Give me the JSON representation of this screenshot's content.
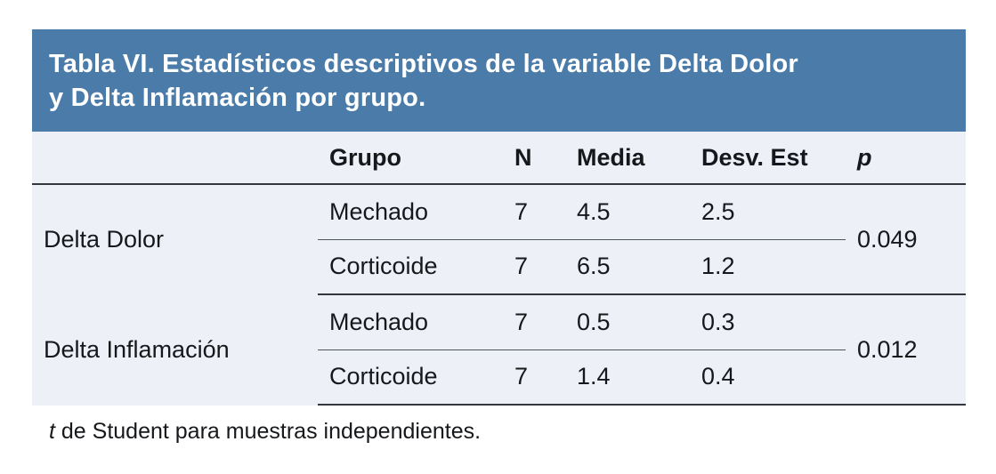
{
  "title": {
    "line1": "Tabla VI. Estadísticos descriptivos de la variable Delta Dolor",
    "line2": "y Delta Inflamación por grupo."
  },
  "table": {
    "headers": {
      "variable": "",
      "grupo": "Grupo",
      "n": "N",
      "media": "Media",
      "desv": "Desv. Est",
      "p": "p"
    },
    "groups": [
      {
        "variable": "Delta Dolor",
        "p": "0.049",
        "rows": [
          {
            "grupo": "Mechado",
            "n": "7",
            "media": "4.5",
            "desv": "2.5"
          },
          {
            "grupo": "Corticoide",
            "n": "7",
            "media": "6.5",
            "desv": "1.2"
          }
        ]
      },
      {
        "variable": "Delta Inflamación",
        "p": "0.012",
        "rows": [
          {
            "grupo": "Mechado",
            "n": "7",
            "media": "0.5",
            "desv": "0.3"
          },
          {
            "grupo": "Corticoide",
            "n": "7",
            "media": "1.4",
            "desv": "0.4"
          }
        ]
      }
    ]
  },
  "footnote": {
    "symbol": "t",
    "text": " de Student para muestras independientes."
  },
  "colors": {
    "banner_blue": "#4b7ca9",
    "table_background": "#edf0f6",
    "rule_dark": "#33373d",
    "rule_thin": "#4f555c",
    "title_text": "#ffffff",
    "body_text": "#16181b"
  }
}
